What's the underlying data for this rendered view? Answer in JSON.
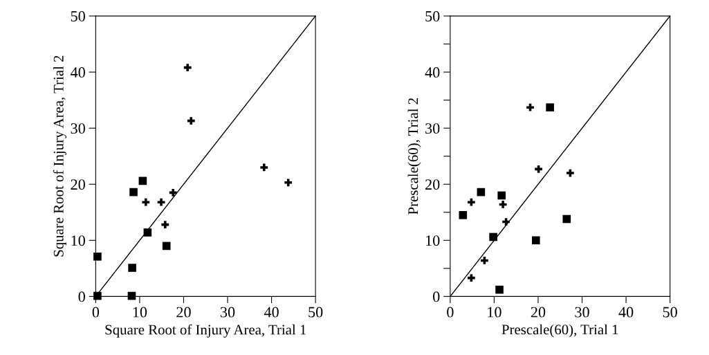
{
  "chart_data": [
    {
      "type": "scatter",
      "xlabel": "Square Root of Injury Area, Trial 1",
      "ylabel": "Square Root of Injury Area, Trial 2",
      "xlim": [
        0,
        50
      ],
      "ylim": [
        0,
        50
      ],
      "xticks": [
        0,
        10,
        20,
        30,
        40,
        50
      ],
      "yticks": [
        0,
        10,
        20,
        30,
        40,
        50
      ],
      "grid": false,
      "legend": false,
      "series": [
        {
          "color": "#000000",
          "marker": "square",
          "x": [
            0.4,
            0.4,
            8.3,
            8.2,
            8.6,
            10.7,
            11.8,
            16.1
          ],
          "values": [
            7.1,
            0.1,
            5.1,
            0.1,
            18.6,
            20.6,
            11.4,
            9.0
          ]
        },
        {
          "color": "#000000",
          "marker": "cross",
          "x": [
            20.9,
            21.7,
            11.4,
            14.9,
            17.6,
            15.8,
            38.3,
            43.8
          ],
          "values": [
            40.8,
            31.3,
            16.8,
            16.8,
            18.5,
            12.8,
            23.0,
            20.3
          ]
        },
        {
          "type": "line",
          "color": "#000000",
          "marker": "none",
          "line_style": "solid",
          "x": [
            0,
            50
          ],
          "values": [
            0,
            50
          ]
        }
      ]
    },
    {
      "type": "scatter",
      "xlabel": "Prescale(60), Trial 1",
      "ylabel": "Prescale(60), Trial 2",
      "xlim": [
        0,
        50
      ],
      "ylim": [
        0,
        50
      ],
      "xticks": [
        0,
        10,
        20,
        30,
        40,
        50
      ],
      "yticks": [
        0,
        {
          "value": 5,
          "label": null
        },
        10,
        {
          "value": 15,
          "label": null
        },
        20,
        {
          "value": 25,
          "label": null
        },
        30,
        {
          "value": 35,
          "label": null
        },
        40,
        {
          "value": 45,
          "label": null
        },
        50
      ],
      "grid": false,
      "legend": false,
      "series": [
        {
          "color": "#000000",
          "marker": "square",
          "x": [
            2.9,
            7.0,
            11.7,
            9.8,
            11.2,
            19.5,
            22.7,
            26.5
          ],
          "values": [
            14.5,
            18.6,
            18.0,
            10.6,
            1.2,
            10.0,
            33.7,
            13.8
          ]
        },
        {
          "color": "#000000",
          "marker": "cross",
          "x": [
            18.2,
            20.1,
            27.3,
            4.8,
            12.0,
            12.7,
            7.8,
            4.8
          ],
          "values": [
            33.7,
            22.7,
            22.0,
            16.8,
            16.4,
            13.3,
            6.4,
            3.3
          ]
        },
        {
          "type": "line",
          "color": "#000000",
          "marker": "none",
          "line_style": "solid",
          "x": [
            0,
            50
          ],
          "values": [
            0,
            50
          ]
        }
      ]
    }
  ]
}
